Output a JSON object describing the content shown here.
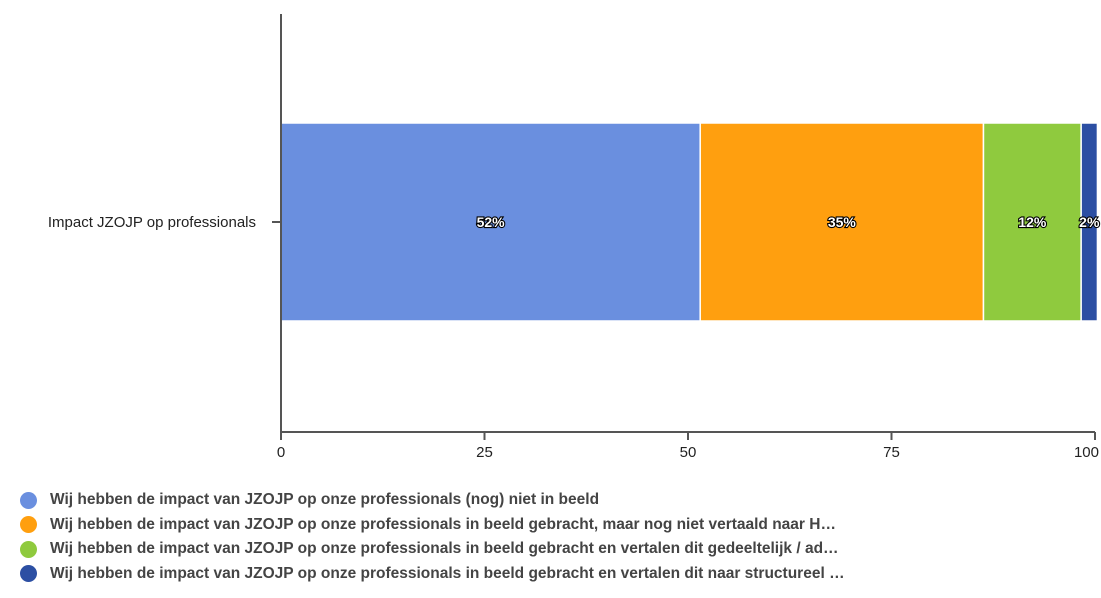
{
  "chart_data": {
    "type": "bar",
    "orientation": "horizontal",
    "stacked": true,
    "categories": [
      "Impact JZOJP op professionals"
    ],
    "series": [
      {
        "name": "Wij hebben de impact van JZOJP op onze professionals (nog) niet in beeld",
        "values": [
          51.5
        ],
        "label": "52%",
        "color": "#6a8fdf"
      },
      {
        "name": "Wij hebben de impact van JZOJP op onze professionals in beeld gebracht, maar nog niet vertaald naar H…",
        "values": [
          34.8
        ],
        "label": "35%",
        "color": "#ff9f0f"
      },
      {
        "name": "Wij hebben de impact van JZOJP op onze professionals in beeld gebracht en vertalen dit gedeeltelijk / ad…",
        "values": [
          12.0
        ],
        "label": "12%",
        "color": "#8fca3e"
      },
      {
        "name": "Wij hebben de impact van JZOJP op onze professionals in beeld gebracht en vertalen dit naar structureel …",
        "values": [
          2.0
        ],
        "label": "2%",
        "color": "#2c4fa3"
      }
    ],
    "xlim": [
      0,
      100
    ],
    "xticks": [
      "0",
      "25",
      "50",
      "75",
      "100"
    ],
    "grid": false,
    "legend_position": "bottom-left"
  }
}
